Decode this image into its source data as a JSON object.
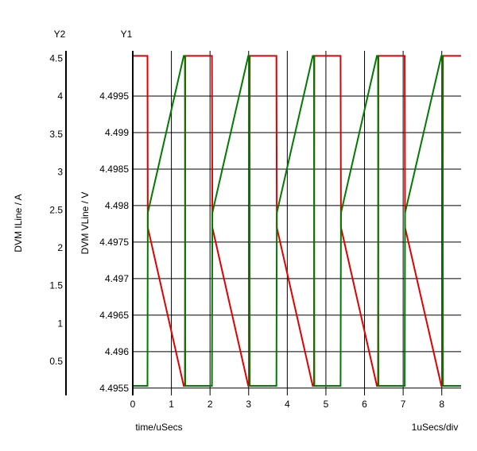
{
  "chart_data": {
    "type": "line",
    "xlabel": "time/uSecs",
    "x_scale_note": "1uSecs/div",
    "xlim": [
      0,
      8.5
    ],
    "x_ticks": [
      0,
      1,
      2,
      3,
      4,
      5,
      6,
      7,
      8
    ],
    "y1": {
      "axis_title": "Y1",
      "label": "DVM VLine / V",
      "lim": [
        4.4954,
        4.50012
      ],
      "ticks": [
        4.4955,
        4.496,
        4.4965,
        4.497,
        4.4975,
        4.498,
        4.4985,
        4.499,
        4.4995
      ],
      "tick_labels": [
        "4.4955",
        "4.496",
        "4.4965",
        "4.497",
        "4.4975",
        "4.498",
        "4.4985",
        "4.499",
        "4.4995"
      ]
    },
    "y2": {
      "axis_title": "Y2",
      "label": "DVM ILine / A",
      "lim": [
        0.05,
        4.6
      ],
      "ticks": [
        0.5,
        1,
        1.5,
        2,
        2.5,
        3,
        3.5,
        4,
        4.5
      ],
      "tick_labels": [
        "0.5",
        "1",
        "1.5",
        "2",
        "2.5",
        "3",
        "3.5",
        "4",
        "4.5"
      ]
    },
    "grid": true,
    "series": [
      {
        "color": "#e00000",
        "axis": "y1",
        "points": [
          [
            0,
            4.50005
          ],
          [
            0.38,
            4.50005
          ],
          [
            0.39,
            4.4977
          ],
          [
            1.32,
            4.49553
          ],
          [
            1.35,
            4.49553
          ],
          [
            1.36,
            4.50005
          ],
          [
            2.05,
            4.50005
          ],
          [
            2.06,
            4.4977
          ],
          [
            2.99,
            4.49553
          ],
          [
            3.02,
            4.49553
          ],
          [
            3.03,
            4.50005
          ],
          [
            3.72,
            4.50005
          ],
          [
            3.73,
            4.4977
          ],
          [
            4.66,
            4.49553
          ],
          [
            4.69,
            4.49553
          ],
          [
            4.7,
            4.50005
          ],
          [
            5.38,
            4.50005
          ],
          [
            5.39,
            4.4977
          ],
          [
            6.32,
            4.49553
          ],
          [
            6.35,
            4.49553
          ],
          [
            6.36,
            4.50005
          ],
          [
            7.04,
            4.50005
          ],
          [
            7.05,
            4.4977
          ],
          [
            7.99,
            4.49553
          ],
          [
            8.02,
            4.49553
          ],
          [
            8.03,
            4.50005
          ],
          [
            8.5,
            4.50005
          ]
        ]
      },
      {
        "color": "#007a00",
        "axis": "y1",
        "points": [
          [
            0,
            4.49553
          ],
          [
            0.38,
            4.49553
          ],
          [
            0.39,
            4.4979
          ],
          [
            1.32,
            4.50005
          ],
          [
            1.35,
            4.50005
          ],
          [
            1.36,
            4.49553
          ],
          [
            2.05,
            4.49553
          ],
          [
            2.06,
            4.4979
          ],
          [
            2.99,
            4.50005
          ],
          [
            3.02,
            4.50005
          ],
          [
            3.03,
            4.49553
          ],
          [
            3.72,
            4.49553
          ],
          [
            3.73,
            4.4979
          ],
          [
            4.66,
            4.50005
          ],
          [
            4.69,
            4.50005
          ],
          [
            4.7,
            4.49553
          ],
          [
            5.38,
            4.49553
          ],
          [
            5.39,
            4.4979
          ],
          [
            6.32,
            4.50005
          ],
          [
            6.35,
            4.50005
          ],
          [
            6.36,
            4.49553
          ],
          [
            7.04,
            4.49553
          ],
          [
            7.05,
            4.4979
          ],
          [
            7.99,
            4.50005
          ],
          [
            8.02,
            4.50005
          ],
          [
            8.03,
            4.49553
          ],
          [
            8.5,
            4.49553
          ]
        ]
      }
    ]
  }
}
